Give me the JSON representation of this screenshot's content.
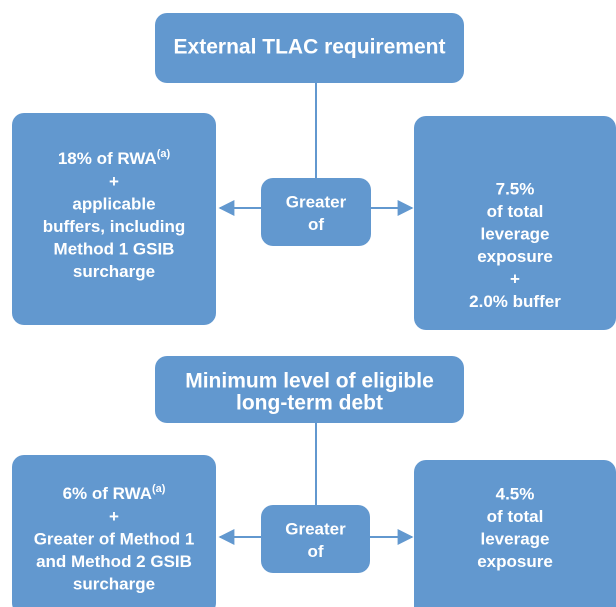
{
  "sections": [
    {
      "title": [
        "External TLAC requirement"
      ],
      "left": [
        {
          "text": "18% of RWA",
          "sup": "(a)"
        },
        "+",
        "applicable",
        "buffers, including",
        "Method 1 GSIB",
        "surcharge"
      ],
      "center": [
        "Greater",
        "of"
      ],
      "right": [
        "7.5%",
        "of total",
        "leverage",
        "exposure",
        "+",
        "2.0% buffer"
      ]
    },
    {
      "title": [
        "Minimum level of eligible",
        "long-term debt"
      ],
      "left": [
        {
          "text": "6% of RWA",
          "sup": "(a)"
        },
        "+",
        "Greater of Method 1",
        "and Method 2 GSIB",
        "surcharge"
      ],
      "center": [
        "Greater",
        "of"
      ],
      "right": [
        "4.5%",
        "of total",
        "leverage",
        "exposure"
      ]
    }
  ]
}
